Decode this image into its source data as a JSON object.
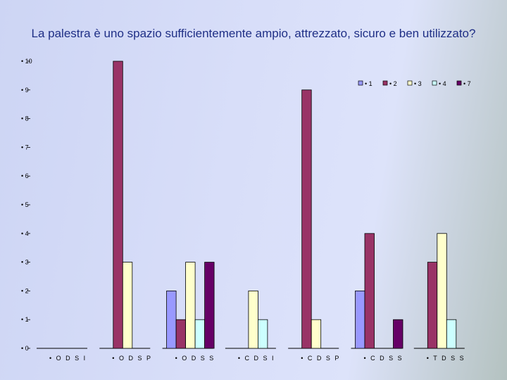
{
  "chart_data": {
    "type": "bar",
    "title": "La palestra è uno spazio sufficientemente ampio, attrezzato, sicuro e ben utilizzato?",
    "categories": [
      "• O D S I",
      "• O D S P",
      "• O D S S",
      "• C D S I",
      "• C D S P",
      "• C D S S",
      "• T D S S"
    ],
    "y_ticks": [
      "• 0",
      "• 1",
      "• 2",
      "• 3",
      "• 4",
      "• 5",
      "• 6",
      "• 7",
      "• 8",
      "• 9",
      "• 10"
    ],
    "ylim": [
      0,
      10
    ],
    "legend_position": "top-right",
    "series": [
      {
        "name": "• 1",
        "color": "#9999ff",
        "values": [
          0,
          0,
          2,
          0,
          0,
          2,
          0
        ]
      },
      {
        "name": "• 2",
        "color": "#993366",
        "values": [
          0,
          10,
          1,
          0,
          9,
          4,
          3
        ]
      },
      {
        "name": "• 3",
        "color": "#ffffcc",
        "values": [
          0,
          3,
          3,
          2,
          1,
          0,
          4
        ]
      },
      {
        "name": "• 4",
        "color": "#ccffff",
        "values": [
          0,
          0,
          1,
          1,
          0,
          0,
          1
        ]
      },
      {
        "name": "• 7",
        "color": "#660066",
        "values": [
          0,
          0,
          3,
          0,
          0,
          1,
          0
        ]
      }
    ]
  }
}
